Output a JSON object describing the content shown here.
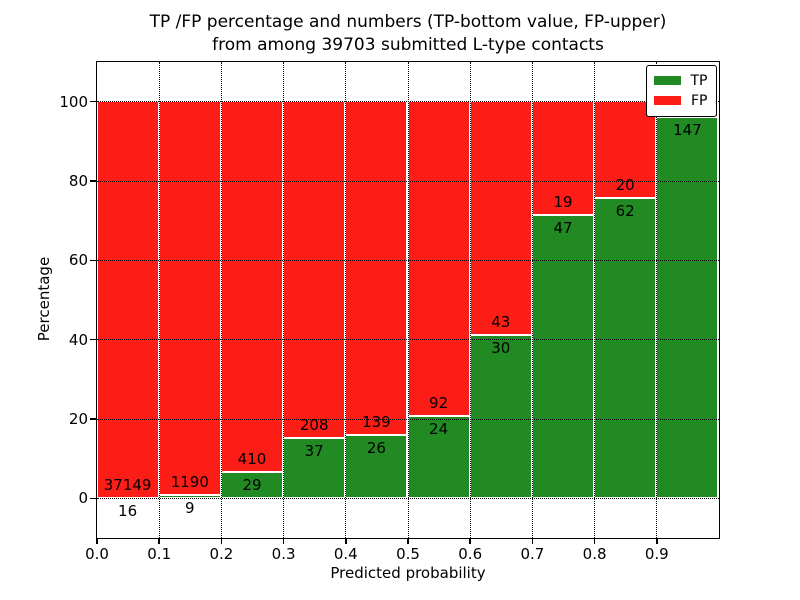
{
  "chart_data": {
    "type": "bar",
    "stacked": true,
    "title_line1": "TP /FP percentage and numbers (TP-bottom value, FP-upper)",
    "title_line2": "from among 39703 submitted L-type contacts",
    "xlabel": "Predicted probability",
    "ylabel": "Percentage",
    "xlim": [
      0,
      1
    ],
    "ylim": [
      -10,
      110
    ],
    "bin_width": 0.1,
    "x_ticks": [
      "0.0",
      "0.1",
      "0.2",
      "0.3",
      "0.4",
      "0.5",
      "0.6",
      "0.7",
      "0.8",
      "0.9"
    ],
    "y_ticks": [
      "0",
      "20",
      "40",
      "60",
      "80",
      "100"
    ],
    "grid": {
      "style": "dotted",
      "axes": "both",
      "above_bars": true
    },
    "colors": {
      "tp": "#228a22",
      "fp": "#fb1d16",
      "background": "#ffffff",
      "grid": "#000000",
      "text": "#000000"
    },
    "legend": {
      "position": "upper right",
      "entries": [
        {
          "label": "TP",
          "color": "#228a22"
        },
        {
          "label": "FP",
          "color": "#fb1d16"
        }
      ]
    },
    "series": [
      {
        "name": "TP",
        "counts": [
          16,
          9,
          29,
          37,
          26,
          24,
          30,
          47,
          62,
          147
        ]
      },
      {
        "name": "FP",
        "counts": [
          37149,
          1190,
          410,
          208,
          139,
          92,
          43,
          19,
          20,
          null
        ]
      }
    ],
    "bars": [
      {
        "x0": 0.0,
        "tp_label": "16",
        "fp_label": "37149",
        "tp_pct": 0.04
      },
      {
        "x0": 0.1,
        "tp_label": "9",
        "fp_label": "1190",
        "tp_pct": 0.75
      },
      {
        "x0": 0.2,
        "tp_label": "29",
        "fp_label": "410",
        "tp_pct": 6.61
      },
      {
        "x0": 0.3,
        "tp_label": "37",
        "fp_label": "208",
        "tp_pct": 15.1
      },
      {
        "x0": 0.4,
        "tp_label": "26",
        "fp_label": "139",
        "tp_pct": 15.76
      },
      {
        "x0": 0.5,
        "tp_label": "24",
        "fp_label": "92",
        "tp_pct": 20.69
      },
      {
        "x0": 0.6,
        "tp_label": "30",
        "fp_label": "43",
        "tp_pct": 41.1
      },
      {
        "x0": 0.7,
        "tp_label": "47",
        "fp_label": "19",
        "tp_pct": 71.21
      },
      {
        "x0": 0.8,
        "tp_label": "62",
        "fp_label": "20",
        "tp_pct": 75.61
      },
      {
        "x0": 0.9,
        "tp_label": "147",
        "fp_label": "",
        "tp_pct": 96.08
      }
    ]
  }
}
